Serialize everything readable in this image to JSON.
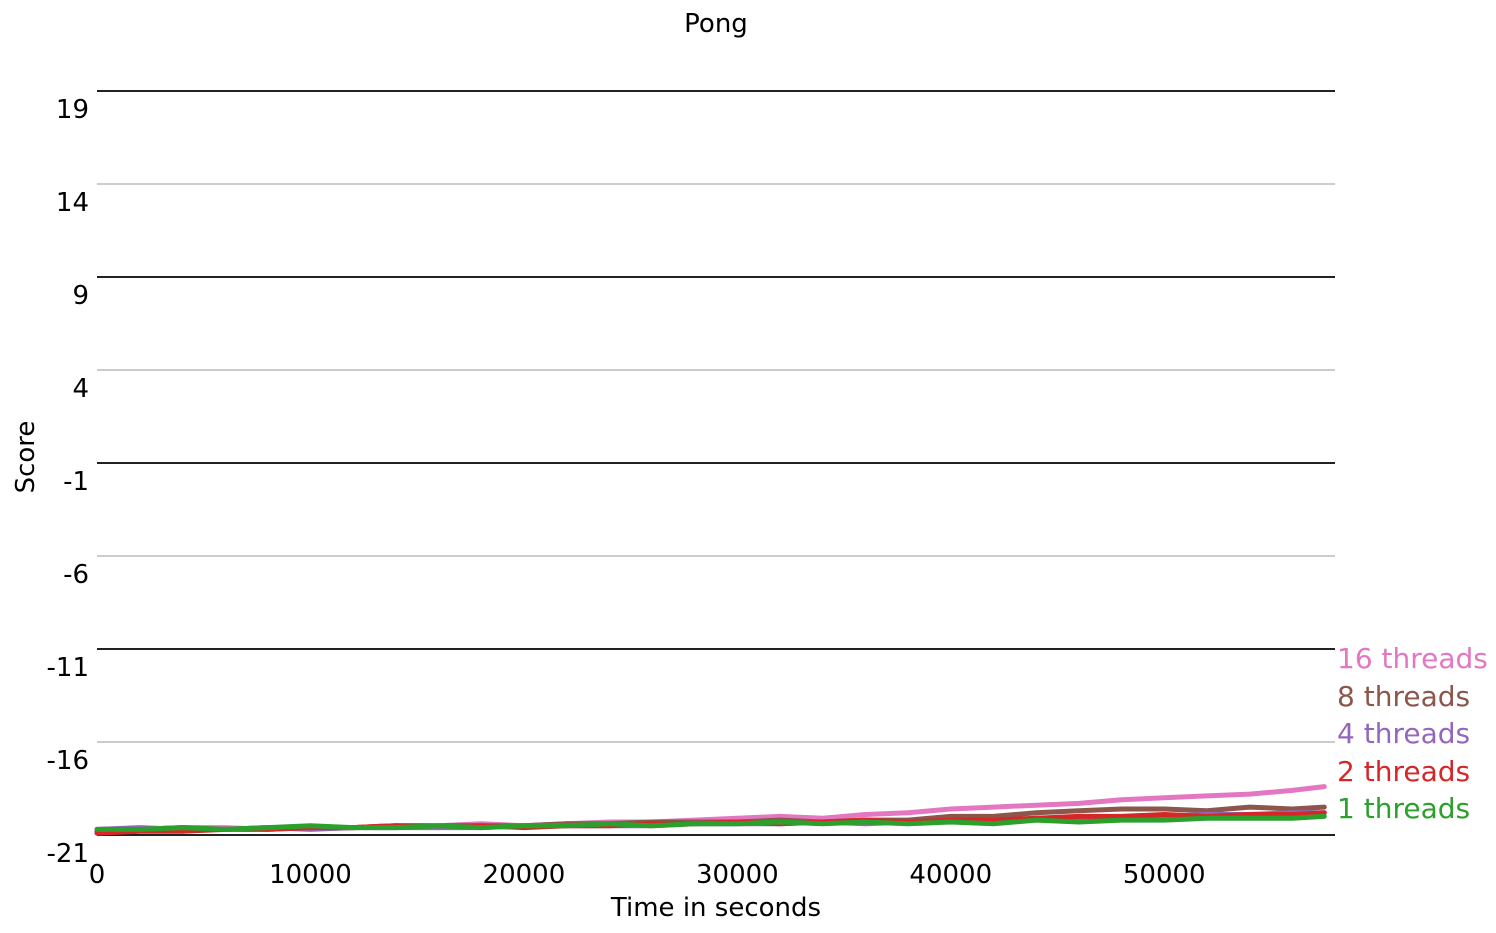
{
  "chart_data": {
    "type": "line",
    "title": "Pong",
    "xlabel": "Time in seconds",
    "ylabel": "Score",
    "xlim": [
      0,
      58000
    ],
    "ylim": [
      -21,
      21
    ],
    "x_ticks": [
      0,
      10000,
      20000,
      30000,
      40000,
      50000
    ],
    "x_tick_labels": [
      "0",
      "10000",
      "20000",
      "30000",
      "40000",
      "50000"
    ],
    "y_ticks": [
      -21,
      -16,
      -11,
      -6,
      -1,
      4,
      9,
      14,
      19
    ],
    "y_tick_labels": [
      "-21",
      "-16",
      "-11",
      "-6",
      "-1",
      "4",
      "9",
      "14",
      "19"
    ],
    "grid": {
      "major": [
        -21,
        -11,
        -1,
        9,
        19
      ],
      "minor": [
        -16,
        -6,
        4,
        14
      ],
      "major_color": "#222222",
      "minor_color": "#bbbbbb"
    },
    "legend_placement": "right, at line ends",
    "series": [
      {
        "name": "16 threads",
        "color": "#e377c2",
        "x": [
          0,
          2000,
          4000,
          6000,
          8000,
          10000,
          12000,
          14000,
          16000,
          18000,
          20000,
          22000,
          24000,
          26000,
          28000,
          30000,
          32000,
          34000,
          36000,
          38000,
          40000,
          42000,
          44000,
          46000,
          48000,
          50000,
          52000,
          54000,
          56000,
          57500
        ],
        "y": [
          -20.8,
          -20.7,
          -20.6,
          -20.6,
          -20.7,
          -20.6,
          -20.6,
          -20.5,
          -20.5,
          -20.4,
          -20.5,
          -20.4,
          -20.3,
          -20.3,
          -20.2,
          -20.1,
          -20.0,
          -20.1,
          -19.9,
          -19.8,
          -19.6,
          -19.5,
          -19.4,
          -19.3,
          -19.1,
          -19.0,
          -18.9,
          -18.8,
          -18.6,
          -18.4
        ]
      },
      {
        "name": "8 threads",
        "color": "#8c564b",
        "x": [
          0,
          2000,
          4000,
          6000,
          8000,
          10000,
          12000,
          14000,
          16000,
          18000,
          20000,
          22000,
          24000,
          26000,
          28000,
          30000,
          32000,
          34000,
          36000,
          38000,
          40000,
          42000,
          44000,
          46000,
          48000,
          50000,
          52000,
          54000,
          56000,
          57500
        ],
        "y": [
          -20.8,
          -20.7,
          -20.6,
          -20.7,
          -20.6,
          -20.6,
          -20.6,
          -20.5,
          -20.6,
          -20.5,
          -20.5,
          -20.4,
          -20.4,
          -20.3,
          -20.3,
          -20.3,
          -20.2,
          -20.3,
          -20.2,
          -20.2,
          -20.0,
          -20.0,
          -19.8,
          -19.7,
          -19.6,
          -19.6,
          -19.7,
          -19.5,
          -19.6,
          -19.5
        ]
      },
      {
        "name": "4 threads",
        "color": "#9467bd",
        "x": [
          0,
          2000,
          4000,
          6000,
          8000,
          10000,
          12000,
          14000,
          16000,
          18000,
          20000,
          22000,
          24000,
          26000,
          28000,
          30000,
          32000,
          34000,
          36000,
          38000,
          40000,
          42000,
          44000,
          46000,
          48000,
          50000,
          52000,
          54000,
          56000,
          57500
        ],
        "y": [
          -20.7,
          -20.6,
          -20.7,
          -20.7,
          -20.6,
          -20.7,
          -20.6,
          -20.6,
          -20.6,
          -20.6,
          -20.5,
          -20.5,
          -20.5,
          -20.5,
          -20.4,
          -20.4,
          -20.4,
          -20.3,
          -20.4,
          -20.3,
          -20.2,
          -20.3,
          -20.1,
          -20.1,
          -20.1,
          -20.0,
          -19.9,
          -19.9,
          -19.8,
          -19.8
        ]
      },
      {
        "name": "2 threads",
        "color": "#d62728",
        "x": [
          0,
          2000,
          4000,
          6000,
          8000,
          10000,
          12000,
          14000,
          16000,
          18000,
          20000,
          22000,
          24000,
          26000,
          28000,
          30000,
          32000,
          34000,
          36000,
          38000,
          40000,
          42000,
          44000,
          46000,
          48000,
          50000,
          52000,
          54000,
          56000,
          57500
        ],
        "y": [
          -20.9,
          -20.8,
          -20.8,
          -20.7,
          -20.7,
          -20.6,
          -20.6,
          -20.5,
          -20.5,
          -20.5,
          -20.6,
          -20.5,
          -20.5,
          -20.4,
          -20.4,
          -20.3,
          -20.4,
          -20.3,
          -20.2,
          -20.3,
          -20.2,
          -20.2,
          -20.1,
          -20.0,
          -20.0,
          -19.9,
          -20.0,
          -19.9,
          -19.9,
          -19.8
        ]
      },
      {
        "name": "1 threads",
        "color": "#2ca02c",
        "x": [
          0,
          2000,
          4000,
          6000,
          8000,
          10000,
          12000,
          14000,
          16000,
          18000,
          20000,
          22000,
          24000,
          26000,
          28000,
          30000,
          32000,
          34000,
          36000,
          38000,
          40000,
          42000,
          44000,
          46000,
          48000,
          50000,
          52000,
          54000,
          56000,
          57500
        ],
        "y": [
          -20.7,
          -20.7,
          -20.6,
          -20.7,
          -20.6,
          -20.5,
          -20.6,
          -20.6,
          -20.5,
          -20.6,
          -20.5,
          -20.5,
          -20.4,
          -20.5,
          -20.4,
          -20.4,
          -20.3,
          -20.4,
          -20.3,
          -20.4,
          -20.3,
          -20.4,
          -20.2,
          -20.3,
          -20.2,
          -20.2,
          -20.1,
          -20.1,
          -20.1,
          -20.0
        ]
      }
    ]
  }
}
